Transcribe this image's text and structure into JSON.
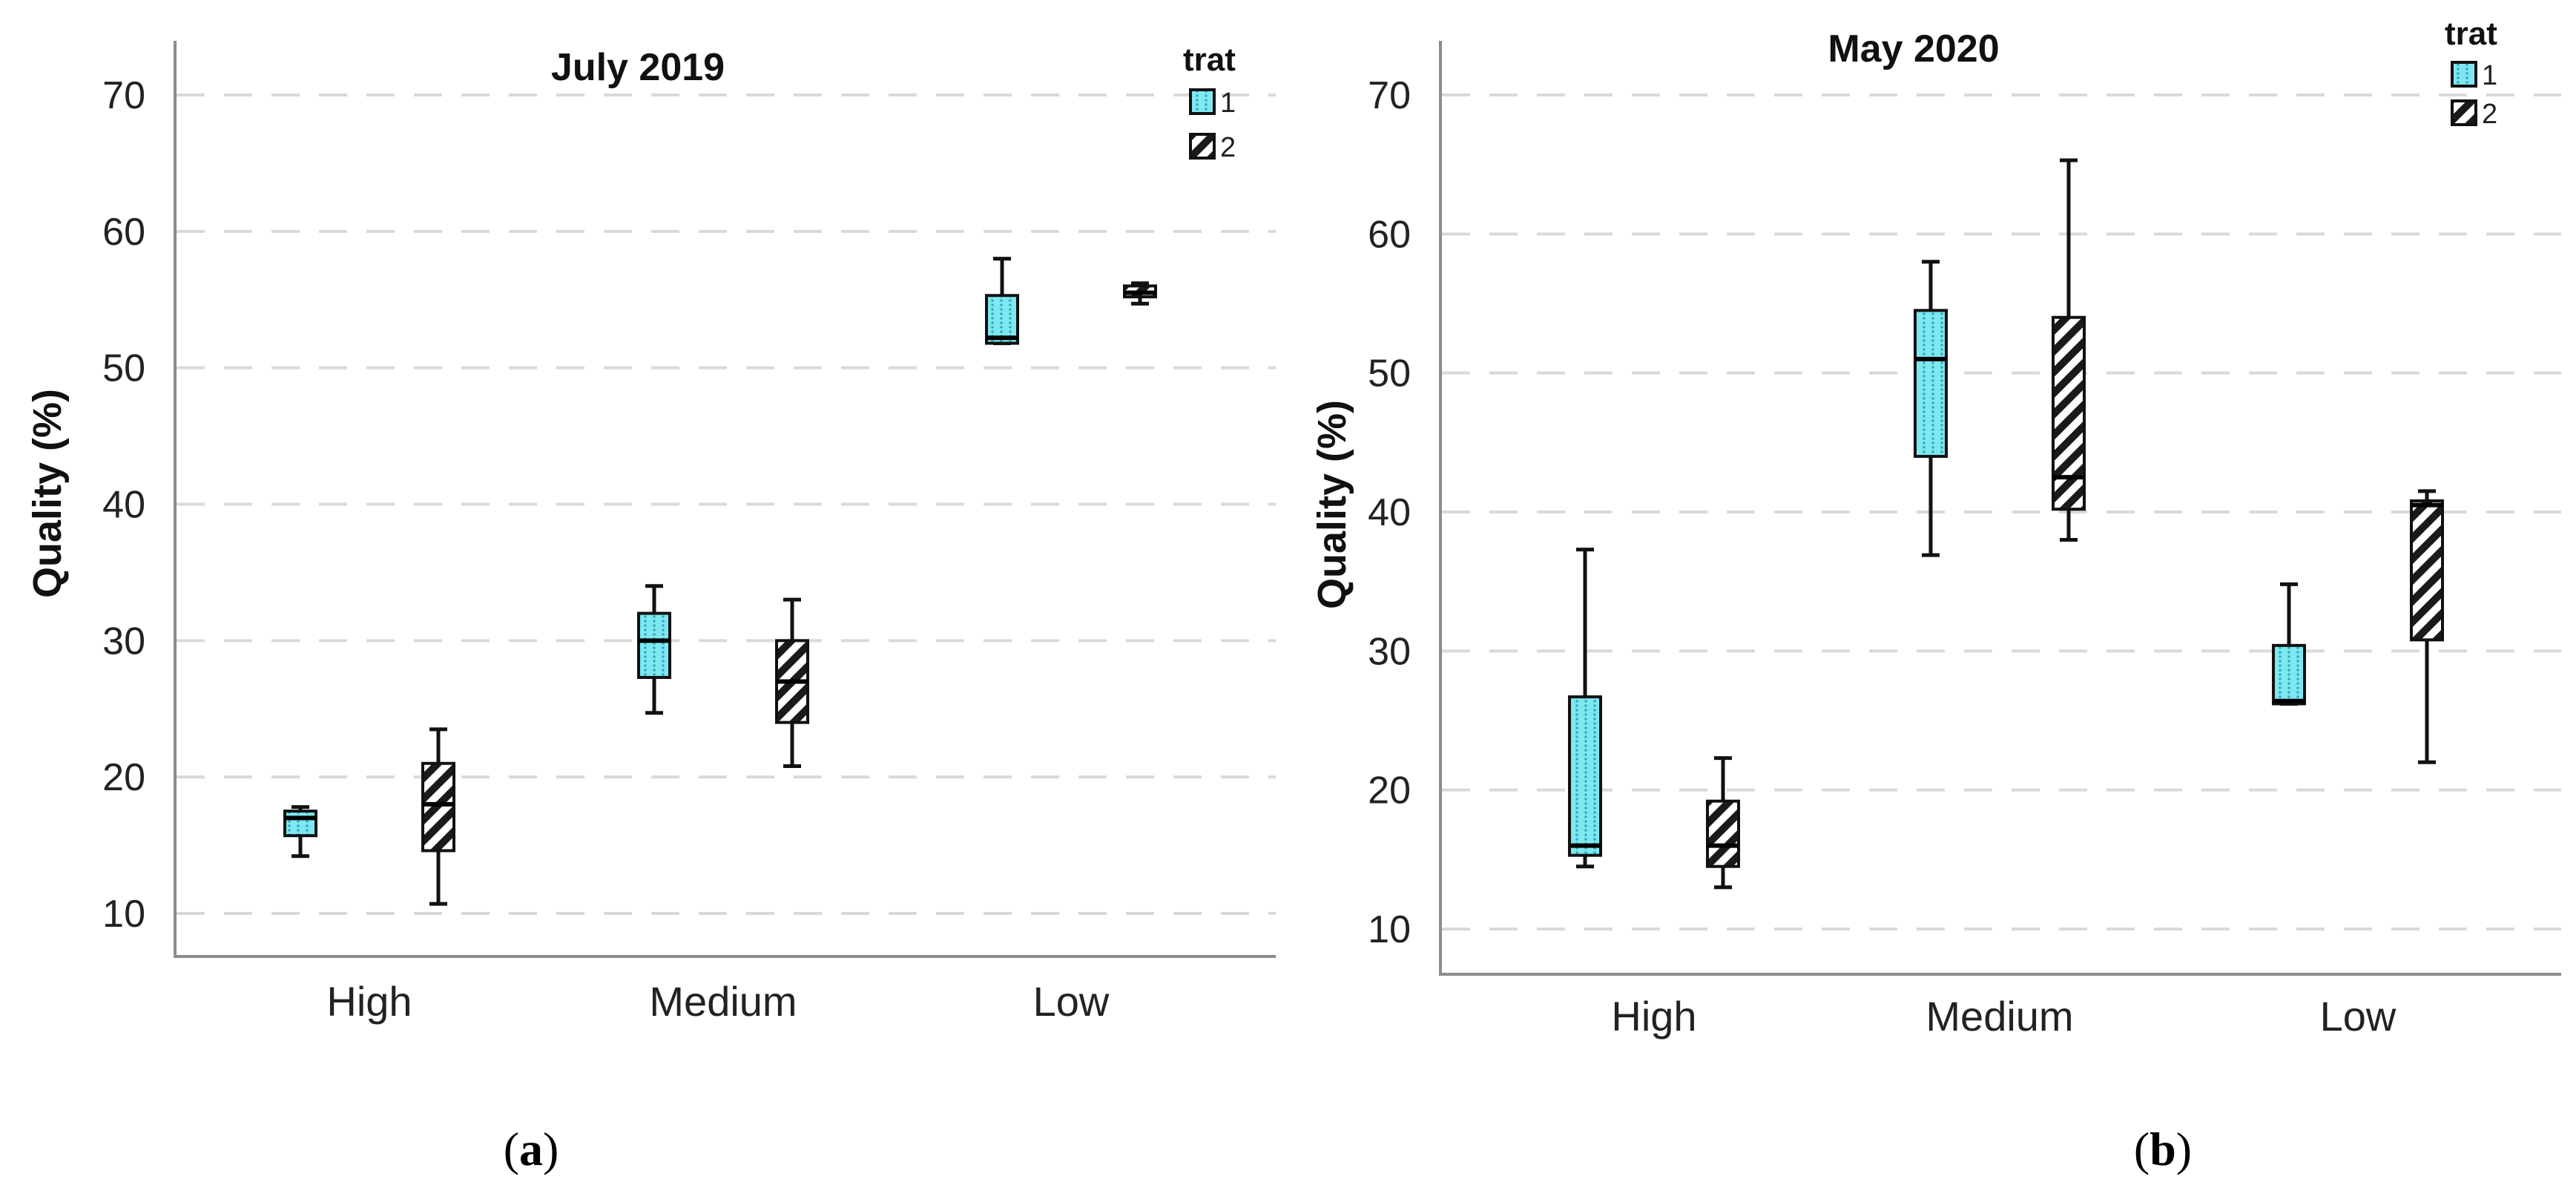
{
  "legend": {
    "title": "trat",
    "entries": [
      "1",
      "2"
    ]
  },
  "colors": {
    "trat1": "#7ee8f0",
    "trat2": "#1a1a1a"
  },
  "chart_data": [
    {
      "type": "box",
      "panel": "a",
      "caption": "a",
      "title": "July 2019",
      "ylabel": "Quality (%)",
      "xlabel": "",
      "ylim": [
        7,
        73
      ],
      "yticks": [
        "10",
        "20",
        "30",
        "40",
        "50",
        "60",
        "70"
      ],
      "grid": true,
      "legend_position": "top-right",
      "categories": [
        "High",
        "Medium",
        "Low"
      ],
      "series": [
        {
          "name": "1",
          "boxes": [
            {
              "min": 14.2,
              "q1": 15.7,
              "median": 17.0,
              "q3": 17.5,
              "max": 17.8
            },
            {
              "min": 24.7,
              "q1": 27.3,
              "median": 30.0,
              "q3": 32.0,
              "max": 34.0
            },
            {
              "min": 51.8,
              "q1": 51.8,
              "median": 52.2,
              "q3": 55.3,
              "max": 58.0
            }
          ]
        },
        {
          "name": "2",
          "boxes": [
            {
              "min": 10.7,
              "q1": 14.6,
              "median": 18.0,
              "q3": 21.0,
              "max": 23.5
            },
            {
              "min": 20.8,
              "q1": 24.0,
              "median": 27.0,
              "q3": 30.0,
              "max": 33.0
            },
            {
              "min": 54.7,
              "q1": 55.2,
              "median": 55.5,
              "q3": 56.0,
              "max": 56.2
            }
          ]
        }
      ]
    },
    {
      "type": "box",
      "panel": "b",
      "caption": "b",
      "title": "May 2020",
      "ylabel": "Quality (%)",
      "xlabel": "",
      "ylim": [
        7,
        73
      ],
      "yticks": [
        "10",
        "20",
        "30",
        "40",
        "50",
        "60",
        "70"
      ],
      "grid": true,
      "legend_position": "top-right",
      "categories": [
        "High",
        "Medium",
        "Low"
      ],
      "series": [
        {
          "name": "1",
          "boxes": [
            {
              "min": 14.5,
              "q1": 15.3,
              "median": 16.0,
              "q3": 26.7,
              "max": 37.3
            },
            {
              "min": 36.9,
              "q1": 44.0,
              "median": 51.0,
              "q3": 54.5,
              "max": 58.0
            },
            {
              "min": 26.2,
              "q1": 26.2,
              "median": 26.4,
              "q3": 30.4,
              "max": 34.8
            }
          ]
        },
        {
          "name": "2",
          "boxes": [
            {
              "min": 13.0,
              "q1": 14.5,
              "median": 16.0,
              "q3": 19.2,
              "max": 22.3
            },
            {
              "min": 38.0,
              "q1": 40.2,
              "median": 42.5,
              "q3": 54.0,
              "max": 65.3
            },
            {
              "min": 22.0,
              "q1": 30.8,
              "median": 40.5,
              "q3": 40.8,
              "max": 41.5
            }
          ]
        }
      ]
    }
  ]
}
